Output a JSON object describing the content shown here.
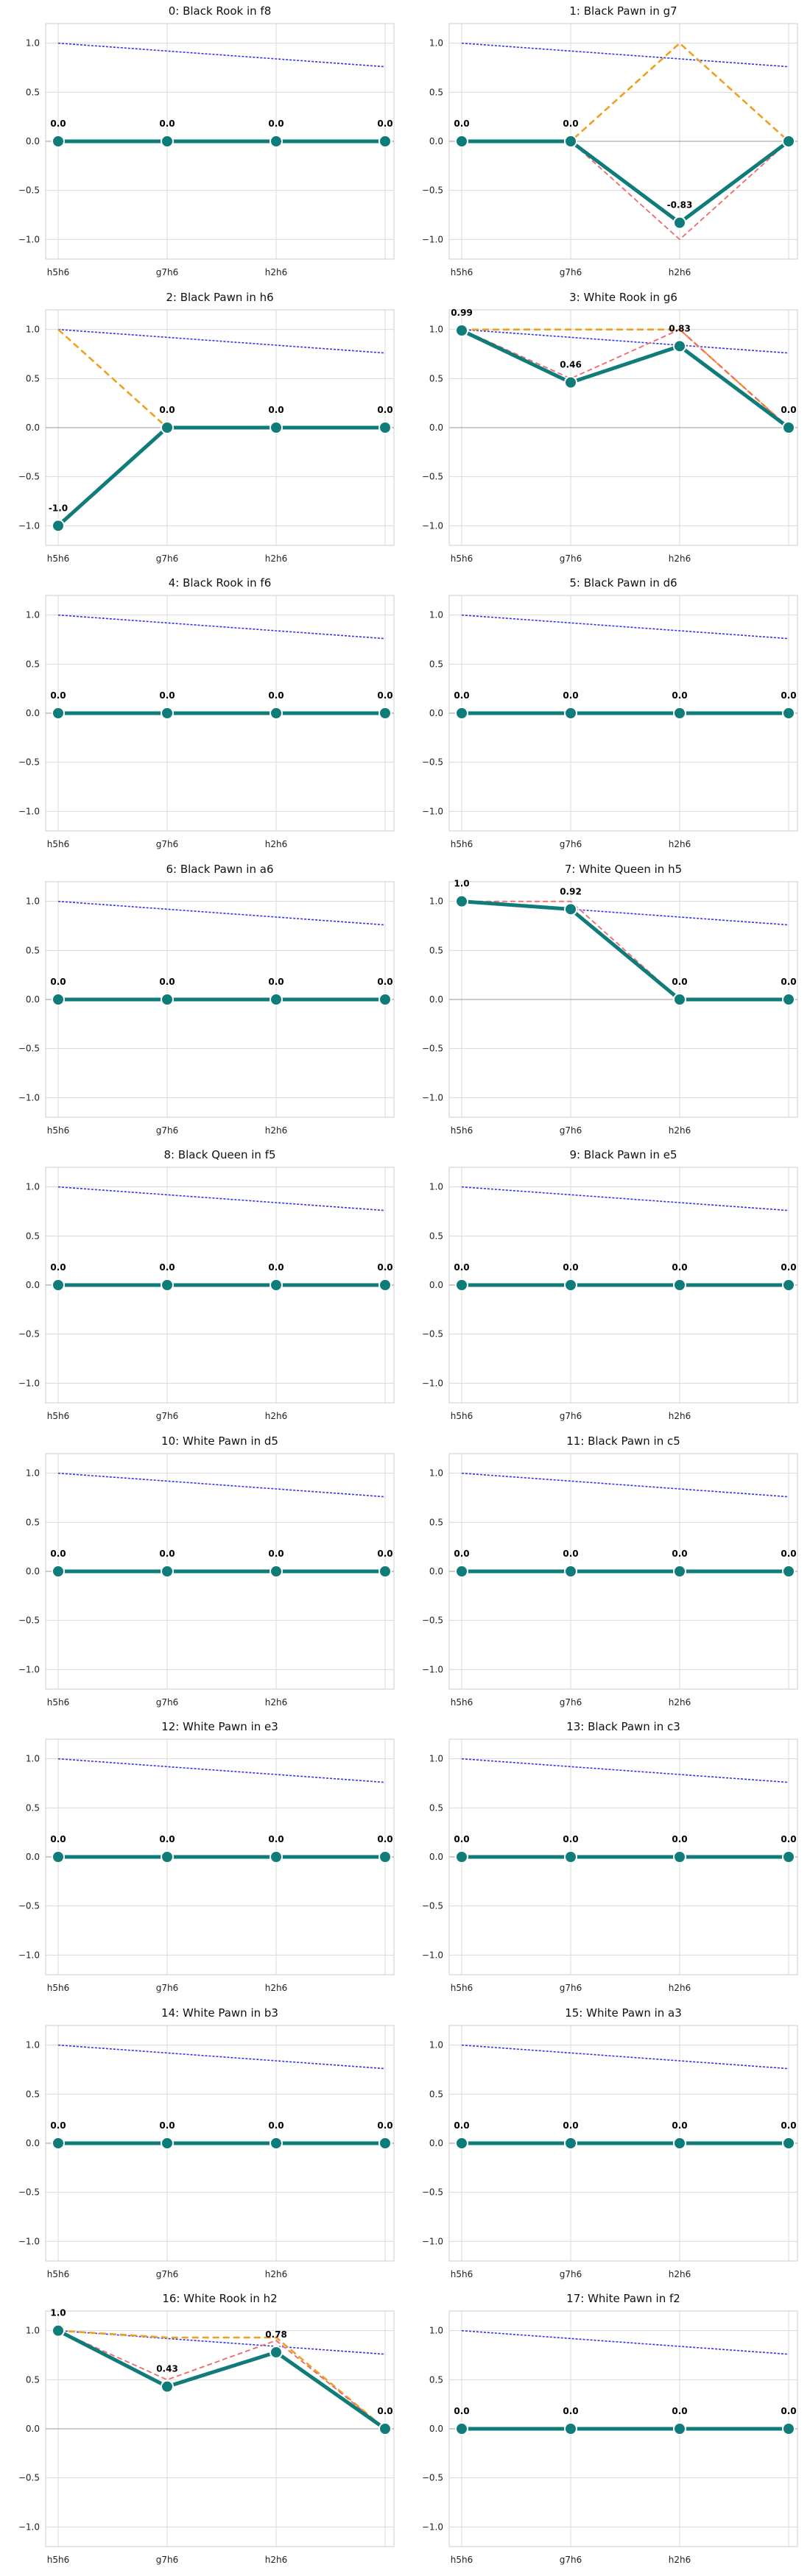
{
  "chart_data": [
    {
      "type": "line",
      "title": "0: Black Rook in f8",
      "categories": [
        "h5h6",
        "g7h6",
        "h2h6",
        ""
      ],
      "ylim": [
        -1.2,
        1.2
      ],
      "yticks": [
        1.0,
        0.5,
        0.0,
        -0.5,
        -1.0
      ],
      "ytick_labels": [
        "1.0",
        "0.5",
        "0.0",
        "−0.5",
        "−1.0"
      ],
      "series": [
        {
          "role": "main",
          "values": [
            0.0,
            0.0,
            0.0,
            0.0
          ],
          "labels": [
            "0.0",
            "0.0",
            "0.0",
            "0.0"
          ]
        },
        {
          "role": "reference",
          "values": [
            1.0,
            0.92,
            0.84,
            0.76
          ]
        }
      ]
    },
    {
      "type": "line",
      "title": "1: Black Pawn in g7",
      "categories": [
        "h5h6",
        "g7h6",
        "h2h6",
        ""
      ],
      "ylim": [
        -1.2,
        1.2
      ],
      "yticks": [
        1.0,
        0.5,
        0.0,
        -0.5,
        -1.0
      ],
      "ytick_labels": [
        "1.0",
        "0.5",
        "0.0",
        "−0.5",
        "−1.0"
      ],
      "series": [
        {
          "role": "main",
          "values": [
            0.0,
            0.0,
            -0.83,
            0.0
          ],
          "labels": [
            "0.0",
            "0.0",
            "-0.83",
            ""
          ]
        },
        {
          "role": "reference",
          "values": [
            1.0,
            0.92,
            0.84,
            0.76
          ]
        },
        {
          "role": "orange",
          "values": [
            0.0,
            0.0,
            1.0,
            0.0
          ]
        },
        {
          "role": "red",
          "values": [
            0.0,
            0.0,
            -1.0,
            0.0
          ]
        }
      ]
    },
    {
      "type": "line",
      "title": "2: Black Pawn in h6",
      "categories": [
        "h5h6",
        "g7h6",
        "h2h6",
        ""
      ],
      "ylim": [
        -1.2,
        1.2
      ],
      "yticks": [
        1.0,
        0.5,
        0.0,
        -0.5,
        -1.0
      ],
      "ytick_labels": [
        "1.0",
        "0.5",
        "0.0",
        "−0.5",
        "−1.0"
      ],
      "series": [
        {
          "role": "main",
          "values": [
            -1.0,
            0.0,
            0.0,
            0.0
          ],
          "labels": [
            "-1.0",
            "0.0",
            "0.0",
            "0.0"
          ]
        },
        {
          "role": "reference",
          "values": [
            1.0,
            0.92,
            0.84,
            0.76
          ]
        },
        {
          "role": "orange",
          "values": [
            1.0,
            0.0,
            0.0,
            0.0
          ]
        }
      ]
    },
    {
      "type": "line",
      "title": "3: White Rook in g6",
      "categories": [
        "h5h6",
        "g7h6",
        "h2h6",
        ""
      ],
      "ylim": [
        -1.2,
        1.2
      ],
      "yticks": [
        1.0,
        0.5,
        0.0,
        -0.5,
        -1.0
      ],
      "ytick_labels": [
        "1.0",
        "0.5",
        "0.0",
        "−0.5",
        "−1.0"
      ],
      "series": [
        {
          "role": "main",
          "values": [
            0.99,
            0.46,
            0.83,
            0.0
          ],
          "labels": [
            "0.99",
            "0.46",
            "0.83",
            "0.0"
          ]
        },
        {
          "role": "reference",
          "values": [
            1.0,
            0.92,
            0.84,
            0.76
          ]
        },
        {
          "role": "orange",
          "values": [
            1.0,
            1.0,
            1.0,
            0.0
          ]
        },
        {
          "role": "red",
          "values": [
            1.0,
            0.5,
            1.0,
            0.0
          ]
        }
      ]
    },
    {
      "type": "line",
      "title": "4: Black Rook in f6",
      "categories": [
        "h5h6",
        "g7h6",
        "h2h6",
        ""
      ],
      "ylim": [
        -1.2,
        1.2
      ],
      "yticks": [
        1.0,
        0.5,
        0.0,
        -0.5,
        -1.0
      ],
      "ytick_labels": [
        "1.0",
        "0.5",
        "0.0",
        "−0.5",
        "−1.0"
      ],
      "series": [
        {
          "role": "main",
          "values": [
            0.0,
            0.0,
            0.0,
            0.0
          ],
          "labels": [
            "0.0",
            "0.0",
            "0.0",
            "0.0"
          ]
        },
        {
          "role": "reference",
          "values": [
            1.0,
            0.92,
            0.84,
            0.76
          ]
        }
      ]
    },
    {
      "type": "line",
      "title": "5: Black Pawn in d6",
      "categories": [
        "h5h6",
        "g7h6",
        "h2h6",
        ""
      ],
      "ylim": [
        -1.2,
        1.2
      ],
      "yticks": [
        1.0,
        0.5,
        0.0,
        -0.5,
        -1.0
      ],
      "ytick_labels": [
        "1.0",
        "0.5",
        "0.0",
        "−0.5",
        "−1.0"
      ],
      "series": [
        {
          "role": "main",
          "values": [
            0.0,
            0.0,
            0.0,
            0.0
          ],
          "labels": [
            "0.0",
            "0.0",
            "0.0",
            "0.0"
          ]
        },
        {
          "role": "reference",
          "values": [
            1.0,
            0.92,
            0.84,
            0.76
          ]
        }
      ]
    },
    {
      "type": "line",
      "title": "6: Black Pawn in a6",
      "categories": [
        "h5h6",
        "g7h6",
        "h2h6",
        ""
      ],
      "ylim": [
        -1.2,
        1.2
      ],
      "yticks": [
        1.0,
        0.5,
        0.0,
        -0.5,
        -1.0
      ],
      "ytick_labels": [
        "1.0",
        "0.5",
        "0.0",
        "−0.5",
        "−1.0"
      ],
      "series": [
        {
          "role": "main",
          "values": [
            0.0,
            0.0,
            0.0,
            0.0
          ],
          "labels": [
            "0.0",
            "0.0",
            "0.0",
            "0.0"
          ]
        },
        {
          "role": "reference",
          "values": [
            1.0,
            0.92,
            0.84,
            0.76
          ]
        }
      ]
    },
    {
      "type": "line",
      "title": "7: White Queen in h5",
      "categories": [
        "h5h6",
        "g7h6",
        "h2h6",
        ""
      ],
      "ylim": [
        -1.2,
        1.2
      ],
      "yticks": [
        1.0,
        0.5,
        0.0,
        -0.5,
        -1.0
      ],
      "ytick_labels": [
        "1.0",
        "0.5",
        "0.0",
        "−0.5",
        "−1.0"
      ],
      "series": [
        {
          "role": "main",
          "values": [
            1.0,
            0.92,
            0.0,
            0.0
          ],
          "labels": [
            "1.0",
            "0.92",
            "0.0",
            "0.0"
          ]
        },
        {
          "role": "reference",
          "values": [
            1.0,
            0.92,
            0.84,
            0.76
          ]
        },
        {
          "role": "red",
          "values": [
            1.0,
            1.0,
            0.0,
            0.0
          ]
        }
      ]
    },
    {
      "type": "line",
      "title": "8: Black Queen in f5",
      "categories": [
        "h5h6",
        "g7h6",
        "h2h6",
        ""
      ],
      "ylim": [
        -1.2,
        1.2
      ],
      "yticks": [
        1.0,
        0.5,
        0.0,
        -0.5,
        -1.0
      ],
      "ytick_labels": [
        "1.0",
        "0.5",
        "0.0",
        "−0.5",
        "−1.0"
      ],
      "series": [
        {
          "role": "main",
          "values": [
            0.0,
            0.0,
            0.0,
            0.0
          ],
          "labels": [
            "0.0",
            "0.0",
            "0.0",
            "0.0"
          ]
        },
        {
          "role": "reference",
          "values": [
            1.0,
            0.92,
            0.84,
            0.76
          ]
        }
      ]
    },
    {
      "type": "line",
      "title": "9: Black Pawn in e5",
      "categories": [
        "h5h6",
        "g7h6",
        "h2h6",
        ""
      ],
      "ylim": [
        -1.2,
        1.2
      ],
      "yticks": [
        1.0,
        0.5,
        0.0,
        -0.5,
        -1.0
      ],
      "ytick_labels": [
        "1.0",
        "0.5",
        "0.0",
        "−0.5",
        "−1.0"
      ],
      "series": [
        {
          "role": "main",
          "values": [
            0.0,
            0.0,
            0.0,
            0.0
          ],
          "labels": [
            "0.0",
            "0.0",
            "0.0",
            "0.0"
          ]
        },
        {
          "role": "reference",
          "values": [
            1.0,
            0.92,
            0.84,
            0.76
          ]
        }
      ]
    },
    {
      "type": "line",
      "title": "10: White Pawn in d5",
      "categories": [
        "h5h6",
        "g7h6",
        "h2h6",
        ""
      ],
      "ylim": [
        -1.2,
        1.2
      ],
      "yticks": [
        1.0,
        0.5,
        0.0,
        -0.5,
        -1.0
      ],
      "ytick_labels": [
        "1.0",
        "0.5",
        "0.0",
        "−0.5",
        "−1.0"
      ],
      "series": [
        {
          "role": "main",
          "values": [
            0.0,
            0.0,
            0.0,
            0.0
          ],
          "labels": [
            "0.0",
            "0.0",
            "0.0",
            "0.0"
          ]
        },
        {
          "role": "reference",
          "values": [
            1.0,
            0.92,
            0.84,
            0.76
          ]
        }
      ]
    },
    {
      "type": "line",
      "title": "11: Black Pawn in c5",
      "categories": [
        "h5h6",
        "g7h6",
        "h2h6",
        ""
      ],
      "ylim": [
        -1.2,
        1.2
      ],
      "yticks": [
        1.0,
        0.5,
        0.0,
        -0.5,
        -1.0
      ],
      "ytick_labels": [
        "1.0",
        "0.5",
        "0.0",
        "−0.5",
        "−1.0"
      ],
      "series": [
        {
          "role": "main",
          "values": [
            0.0,
            0.0,
            0.0,
            0.0
          ],
          "labels": [
            "0.0",
            "0.0",
            "0.0",
            "0.0"
          ]
        },
        {
          "role": "reference",
          "values": [
            1.0,
            0.92,
            0.84,
            0.76
          ]
        }
      ]
    },
    {
      "type": "line",
      "title": "12: White Pawn in e3",
      "categories": [
        "h5h6",
        "g7h6",
        "h2h6",
        ""
      ],
      "ylim": [
        -1.2,
        1.2
      ],
      "yticks": [
        1.0,
        0.5,
        0.0,
        -0.5,
        -1.0
      ],
      "ytick_labels": [
        "1.0",
        "0.5",
        "0.0",
        "−0.5",
        "−1.0"
      ],
      "series": [
        {
          "role": "main",
          "values": [
            0.0,
            0.0,
            0.0,
            0.0
          ],
          "labels": [
            "0.0",
            "0.0",
            "0.0",
            "0.0"
          ]
        },
        {
          "role": "reference",
          "values": [
            1.0,
            0.92,
            0.84,
            0.76
          ]
        }
      ]
    },
    {
      "type": "line",
      "title": "13: Black Pawn in c3",
      "categories": [
        "h5h6",
        "g7h6",
        "h2h6",
        ""
      ],
      "ylim": [
        -1.2,
        1.2
      ],
      "yticks": [
        1.0,
        0.5,
        0.0,
        -0.5,
        -1.0
      ],
      "ytick_labels": [
        "1.0",
        "0.5",
        "0.0",
        "−0.5",
        "−1.0"
      ],
      "series": [
        {
          "role": "main",
          "values": [
            0.0,
            0.0,
            0.0,
            0.0
          ],
          "labels": [
            "0.0",
            "0.0",
            "0.0",
            "0.0"
          ]
        },
        {
          "role": "reference",
          "values": [
            1.0,
            0.92,
            0.84,
            0.76
          ]
        }
      ]
    },
    {
      "type": "line",
      "title": "14: White Pawn in b3",
      "categories": [
        "h5h6",
        "g7h6",
        "h2h6",
        ""
      ],
      "ylim": [
        -1.2,
        1.2
      ],
      "yticks": [
        1.0,
        0.5,
        0.0,
        -0.5,
        -1.0
      ],
      "ytick_labels": [
        "1.0",
        "0.5",
        "0.0",
        "−0.5",
        "−1.0"
      ],
      "series": [
        {
          "role": "main",
          "values": [
            0.0,
            0.0,
            0.0,
            0.0
          ],
          "labels": [
            "0.0",
            "0.0",
            "0.0",
            "0.0"
          ]
        },
        {
          "role": "reference",
          "values": [
            1.0,
            0.92,
            0.84,
            0.76
          ]
        }
      ]
    },
    {
      "type": "line",
      "title": "15: White Pawn in a3",
      "categories": [
        "h5h6",
        "g7h6",
        "h2h6",
        ""
      ],
      "ylim": [
        -1.2,
        1.2
      ],
      "yticks": [
        1.0,
        0.5,
        0.0,
        -0.5,
        -1.0
      ],
      "ytick_labels": [
        "1.0",
        "0.5",
        "0.0",
        "−0.5",
        "−1.0"
      ],
      "series": [
        {
          "role": "main",
          "values": [
            0.0,
            0.0,
            0.0,
            0.0
          ],
          "labels": [
            "0.0",
            "0.0",
            "0.0",
            "0.0"
          ]
        },
        {
          "role": "reference",
          "values": [
            1.0,
            0.92,
            0.84,
            0.76
          ]
        }
      ]
    },
    {
      "type": "line",
      "title": "16: White Rook in h2",
      "categories": [
        "h5h6",
        "g7h6",
        "h2h6",
        ""
      ],
      "ylim": [
        -1.2,
        1.2
      ],
      "yticks": [
        1.0,
        0.5,
        0.0,
        -0.5,
        -1.0
      ],
      "ytick_labels": [
        "1.0",
        "0.5",
        "0.0",
        "−0.5",
        "−1.0"
      ],
      "series": [
        {
          "role": "main",
          "values": [
            1.0,
            0.43,
            0.78,
            0.0
          ],
          "labels": [
            "1.0",
            "0.43",
            "0.78",
            "0.0"
          ]
        },
        {
          "role": "reference",
          "values": [
            1.0,
            0.92,
            0.84,
            0.76
          ]
        },
        {
          "role": "orange",
          "values": [
            1.0,
            0.93,
            0.93,
            0.0
          ]
        },
        {
          "role": "red",
          "values": [
            1.0,
            0.5,
            0.9,
            0.0
          ]
        }
      ]
    },
    {
      "type": "line",
      "title": "17: White Pawn in f2",
      "categories": [
        "h5h6",
        "g7h6",
        "h2h6",
        ""
      ],
      "ylim": [
        -1.2,
        1.2
      ],
      "yticks": [
        1.0,
        0.5,
        0.0,
        -0.5,
        -1.0
      ],
      "ytick_labels": [
        "1.0",
        "0.5",
        "0.0",
        "−0.5",
        "−1.0"
      ],
      "series": [
        {
          "role": "main",
          "values": [
            0.0,
            0.0,
            0.0,
            0.0
          ],
          "labels": [
            "0.0",
            "0.0",
            "0.0",
            "0.0"
          ]
        },
        {
          "role": "reference",
          "values": [
            1.0,
            0.92,
            0.84,
            0.76
          ]
        }
      ]
    }
  ],
  "colors": {
    "main": "#0f7c7a",
    "main_marker_edge": "#ffffff",
    "reference": "#3333ee",
    "orange": "#f0a020",
    "red": "#ee6a6a",
    "zero_line": "#999999",
    "grid": "#d9d9d9",
    "frame": "#cccccc"
  }
}
